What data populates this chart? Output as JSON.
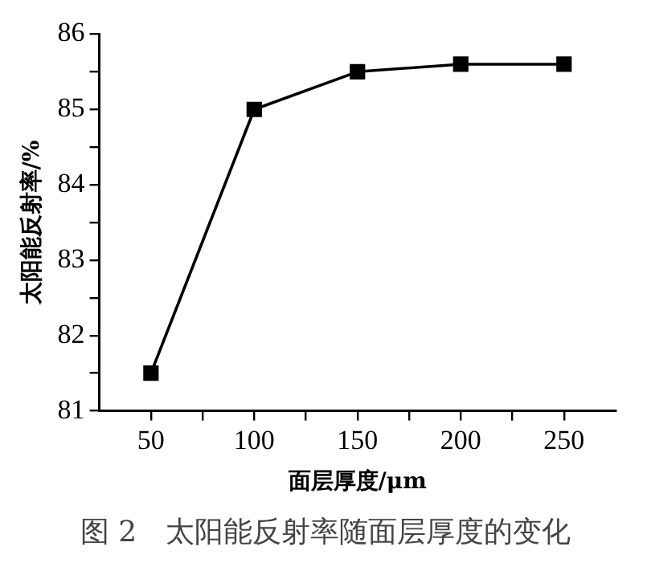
{
  "chart_data": {
    "type": "line",
    "xlabel": "面层厚度/μm",
    "ylabel": "太阳能反射率/%",
    "x": [
      50,
      100,
      150,
      200,
      250
    ],
    "series": [
      {
        "color": "#000000",
        "values": [
          81.5,
          85.0,
          85.5,
          85.6,
          85.6
        ]
      }
    ],
    "xlim": [
      25,
      275
    ],
    "xticks": [
      50,
      {
        "value": 75,
        "label": null
      },
      100,
      {
        "value": 125,
        "label": null
      },
      150,
      {
        "value": 175,
        "label": null
      },
      200,
      {
        "value": 225,
        "label": null
      },
      250
    ],
    "ylim": [
      81,
      86
    ],
    "yticks": [
      81,
      {
        "value": 81.5,
        "label": null
      },
      82,
      {
        "value": 82.5,
        "label": null
      },
      83,
      {
        "value": 83.5,
        "label": null
      },
      84,
      {
        "value": 84.5,
        "label": null
      },
      85,
      {
        "value": 85.5,
        "label": null
      },
      86
    ],
    "marker": "square",
    "line_style": "solid",
    "grid": false,
    "legend": false,
    "annotations": [
      "图 2　太阳能反射率随面层厚度的变化"
    ]
  }
}
